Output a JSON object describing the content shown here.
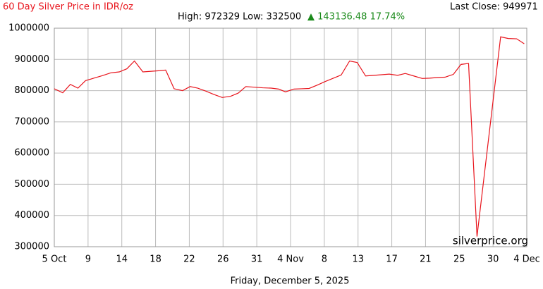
{
  "chart_data": {
    "type": "line",
    "title": "60 Day Silver Price in IDR/oz",
    "high_low": "High: 972329 Low: 332500",
    "change": "▲ 143136.48 17.74%",
    "last_close": "Last Close: 949971",
    "watermark": "silverprice.org",
    "date_label": "Friday, December 5, 2025",
    "x": [
      0,
      1,
      1.9,
      2.8,
      3.7,
      4.7,
      5.7,
      6.7,
      7.7,
      8.6,
      9.5,
      10.5,
      11.5,
      12.5,
      13.2,
      14.2,
      15.2,
      16.1,
      17,
      18,
      18.9,
      19.9,
      20.9,
      21.8,
      22.7,
      23.7,
      24.7,
      25.7,
      26.6,
      27.4,
      28.4,
      29.3,
      30.2,
      31.2,
      32.1,
      33.1,
      34,
      35,
      35.9,
      36.9,
      37.9,
      38.8,
      39.7,
      40.7,
      41.6,
      42.6,
      43.6,
      44.5,
      45.4,
      46.3,
      47.3,
      48.2,
      49.1,
      50.1,
      52.9,
      53.8,
      54.8,
      55.7
    ],
    "series": [
      {
        "name": "Silver",
        "color": "#e8141c",
        "values": [
          806000,
          793000,
          820000,
          808000,
          832000,
          840000,
          848000,
          857000,
          860000,
          870000,
          895000,
          860000,
          862000,
          864000,
          866000,
          806000,
          800000,
          813000,
          808000,
          798000,
          788000,
          778000,
          782000,
          792000,
          813000,
          811000,
          809000,
          808000,
          805000,
          796000,
          805000,
          806000,
          807000,
          818000,
          829000,
          840000,
          850000,
          895000,
          890000,
          847000,
          849000,
          851000,
          853000,
          849000,
          855000,
          847000,
          839000,
          840000,
          842000,
          843000,
          852000,
          884000,
          887000,
          332500,
          972329,
          967000,
          966000,
          949971
        ]
      }
    ],
    "xlim": [
      0,
      56
    ],
    "xticks": [
      {
        "value": 0,
        "label": "5 Oct"
      },
      {
        "value": 4,
        "label": "9"
      },
      {
        "value": 8,
        "label": "14"
      },
      {
        "value": 12,
        "label": "18"
      },
      {
        "value": 16,
        "label": "22"
      },
      {
        "value": 20,
        "label": "26"
      },
      {
        "value": 24,
        "label": "31"
      },
      {
        "value": 28,
        "label": "4 Nov"
      },
      {
        "value": 32,
        "label": "8"
      },
      {
        "value": 36,
        "label": "13"
      },
      {
        "value": 40,
        "label": "17"
      },
      {
        "value": 44,
        "label": "21"
      },
      {
        "value": 48,
        "label": "25"
      },
      {
        "value": 52,
        "label": "30"
      },
      {
        "value": 56,
        "label": "4 Dec"
      }
    ],
    "ylim": [
      300000,
      1000000
    ],
    "yticks": [
      300000,
      400000,
      500000,
      600000,
      700000,
      800000,
      900000,
      1000000
    ],
    "grid": true
  }
}
